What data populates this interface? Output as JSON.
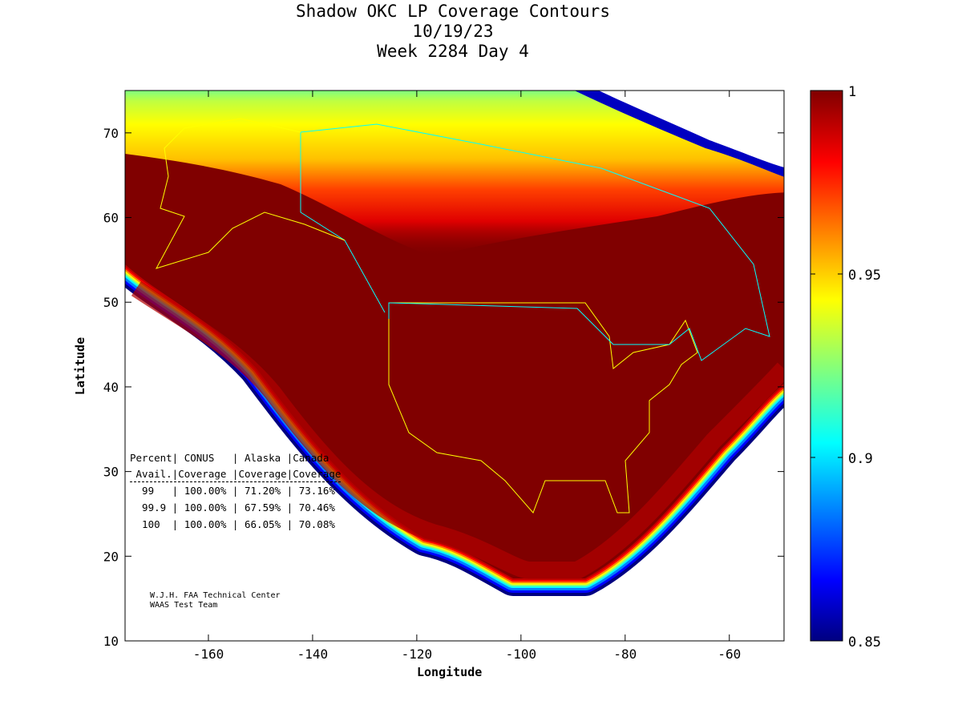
{
  "chart_data": {
    "type": "heatmap",
    "title": [
      "Shadow OKC LP Coverage Contours",
      "10/19/23",
      "Week 2284 Day 4"
    ],
    "xlabel": "Longitude",
    "ylabel": "Latitude",
    "xlim": [
      -176,
      -49.5
    ],
    "ylim": [
      10,
      75
    ],
    "xticks": [
      -160,
      -140,
      -120,
      -100,
      -80,
      -60
    ],
    "yticks": [
      10,
      20,
      30,
      40,
      50,
      60,
      70
    ],
    "colorbar": {
      "range": [
        0.85,
        1
      ],
      "ticks": [
        1,
        0.95,
        0.9,
        0.85
      ],
      "tick_labels": [
        "1",
        "0.95",
        "0.9",
        "0.85"
      ],
      "colormap": "jet"
    },
    "colors": {
      "max": "#800000",
      "red": "#ff0000",
      "orange": "#ff8000",
      "yellow": "#ffff00",
      "cyan": "#00ffff",
      "blue": "#0000ff",
      "min": "#000080",
      "conus_border": "#ffff00",
      "canada_border": "#00ffff"
    },
    "table": {
      "header1": "Percent| CONUS   | Alaska |Canada",
      "header2": " Avail.|Coverage |Coverage|Coverage",
      "rows": [
        {
          "avail": "99",
          "conus": "100.00%",
          "alaska": "71.20%",
          "canada": "73.16%"
        },
        {
          "avail": "99.9",
          "conus": "100.00%",
          "alaska": "67.59%",
          "canada": "70.46%"
        },
        {
          "avail": "100",
          "conus": "100.00%",
          "alaska": "66.05%",
          "canada": "70.08%"
        }
      ]
    },
    "credit": [
      "W.J.H. FAA Technical Center",
      "WAAS Test Team"
    ]
  }
}
